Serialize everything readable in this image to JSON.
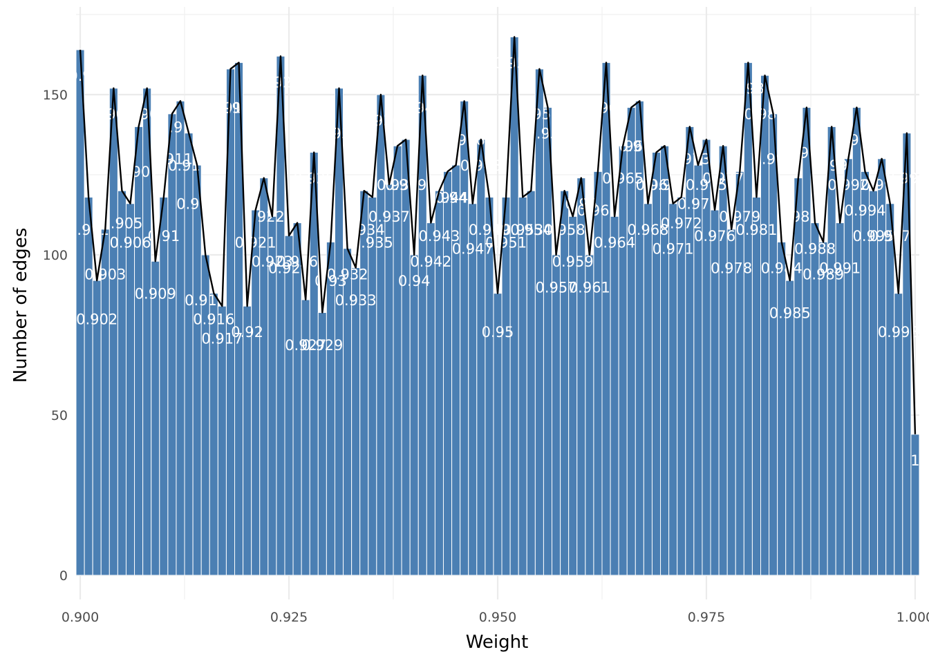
{
  "chart_data": {
    "type": "bar",
    "title": "",
    "xlabel": "Weight",
    "ylabel": "Number of edges",
    "xlim": [
      0.8995,
      1.0005
    ],
    "ylim": [
      0,
      170
    ],
    "x_ticks": [
      "0.900",
      "0.925",
      "0.950",
      "0.975",
      "1.000"
    ],
    "x_tick_values": [
      0.9,
      0.925,
      0.95,
      0.975,
      1.0
    ],
    "y_ticks": [
      "0",
      "50",
      "100",
      "150"
    ],
    "y_tick_values": [
      0,
      50,
      100,
      150
    ],
    "grid": true,
    "legend": "none",
    "bar_color": "#4b7fb3",
    "line_color": "#000000",
    "overlay": "line connecting bar tops",
    "x": [
      0.9,
      0.901,
      0.902,
      0.903,
      0.904,
      0.905,
      0.906,
      0.907,
      0.908,
      0.909,
      0.91,
      0.911,
      0.912,
      0.913,
      0.914,
      0.915,
      0.916,
      0.917,
      0.918,
      0.919,
      0.92,
      0.921,
      0.922,
      0.923,
      0.924,
      0.925,
      0.926,
      0.927,
      0.928,
      0.929,
      0.93,
      0.931,
      0.932,
      0.933,
      0.934,
      0.935,
      0.936,
      0.937,
      0.938,
      0.939,
      0.94,
      0.941,
      0.942,
      0.943,
      0.944,
      0.945,
      0.946,
      0.947,
      0.948,
      0.949,
      0.95,
      0.951,
      0.952,
      0.953,
      0.954,
      0.955,
      0.956,
      0.957,
      0.958,
      0.959,
      0.96,
      0.961,
      0.962,
      0.963,
      0.964,
      0.965,
      0.966,
      0.967,
      0.968,
      0.969,
      0.97,
      0.971,
      0.972,
      0.973,
      0.974,
      0.975,
      0.976,
      0.977,
      0.978,
      0.979,
      0.98,
      0.981,
      0.982,
      0.983,
      0.984,
      0.985,
      0.986,
      0.987,
      0.988,
      0.989,
      0.99,
      0.991,
      0.992,
      0.993,
      0.994,
      0.995,
      0.996,
      0.997,
      0.998,
      0.999,
      1.0
    ],
    "values": [
      164,
      118,
      92,
      108,
      152,
      120,
      116,
      140,
      152,
      98,
      118,
      144,
      148,
      138,
      128,
      100,
      88,
      84,
      158,
      160,
      84,
      114,
      124,
      112,
      162,
      106,
      110,
      86,
      132,
      82,
      104,
      152,
      102,
      96,
      120,
      118,
      150,
      122,
      134,
      136,
      100,
      156,
      110,
      120,
      126,
      128,
      148,
      116,
      136,
      118,
      88,
      118,
      168,
      118,
      120,
      158,
      146,
      100,
      120,
      112,
      124,
      100,
      126,
      160,
      112,
      134,
      146,
      148,
      116,
      132,
      134,
      116,
      118,
      140,
      128,
      136,
      114,
      134,
      108,
      126,
      160,
      118,
      156,
      144,
      104,
      92,
      124,
      146,
      110,
      104,
      140,
      110,
      130,
      146,
      126,
      120,
      130,
      116,
      88,
      138,
      44
    ],
    "labels": [
      "0.9",
      "0.901",
      "0.902",
      "0.903",
      "0.904",
      "0.905",
      "0.906",
      "0.907",
      "0.908",
      "0.909",
      "0.91",
      "0.911",
      "0.912",
      "0.913",
      "0.914",
      "0.915",
      "0.916",
      "0.917",
      "0.918",
      "0.919",
      "0.92",
      "0.921",
      "0.922",
      "0.923",
      "0.924",
      "0.925",
      "0.926",
      "0.927",
      "0.928",
      "0.929",
      "0.93",
      "0.931",
      "0.932",
      "0.933",
      "0.934",
      "0.935",
      "0.936",
      "0.937",
      "0.938",
      "0.939",
      "0.94",
      "0.941",
      "0.942",
      "0.943",
      "0.944",
      "0.945",
      "0.946",
      "0.947",
      "0.948",
      "0.949",
      "0.95",
      "0.951",
      "0.952",
      "0.953",
      "0.954",
      "0.955",
      "0.956",
      "0.957",
      "0.958",
      "0.959",
      "0.96",
      "0.961",
      "0.962",
      "0.963",
      "0.964",
      "0.965",
      "0.966",
      "0.967",
      "0.968",
      "0.969",
      "0.97",
      "0.971",
      "0.972",
      "0.973",
      "0.974",
      "0.975",
      "0.976",
      "0.977",
      "0.978",
      "0.979",
      "0.98",
      "0.981",
      "0.982",
      "0.983",
      "0.984",
      "0.985",
      "0.986",
      "0.987",
      "0.988",
      "0.989",
      "0.99",
      "0.991",
      "0.992",
      "0.993",
      "0.994",
      "0.995",
      "0.996",
      "0.997",
      "0.998",
      "0.999",
      "1"
    ],
    "label_offsets": [
      0,
      2,
      4,
      6
    ]
  }
}
